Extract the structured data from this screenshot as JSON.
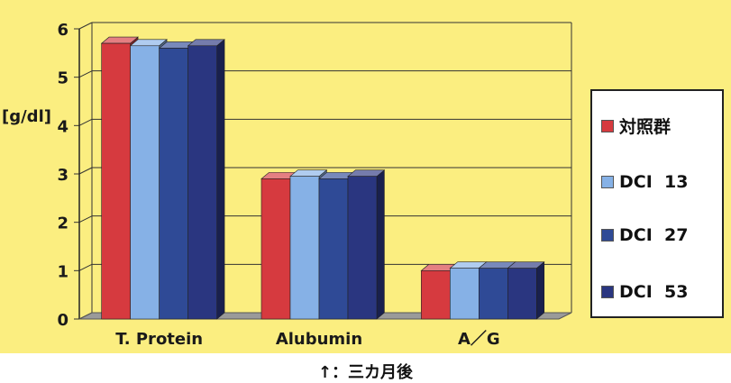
{
  "chart_data": {
    "type": "bar",
    "categories": [
      "T. Protein",
      "Alubumin",
      "A／G"
    ],
    "series": [
      {
        "name": "対照群",
        "values": [
          5.7,
          2.9,
          1.0
        ]
      },
      {
        "name": "DCI  13",
        "values": [
          5.65,
          2.95,
          1.05
        ]
      },
      {
        "name": "DCI  27",
        "values": [
          5.6,
          2.9,
          1.05
        ]
      },
      {
        "name": "DCI  53",
        "values": [
          5.65,
          2.95,
          1.05
        ]
      }
    ],
    "ylabel": "[g/dl]",
    "ylim": [
      0,
      6
    ],
    "yticks": [
      "0",
      "1",
      "2",
      "3",
      "4",
      "5",
      "6"
    ],
    "grid": true,
    "legend_position": "right",
    "colors": [
      "#d63a3f",
      "#86b1e6",
      "#2f4a96",
      "#2a3680"
    ],
    "caption": "↑：三カ月後"
  }
}
